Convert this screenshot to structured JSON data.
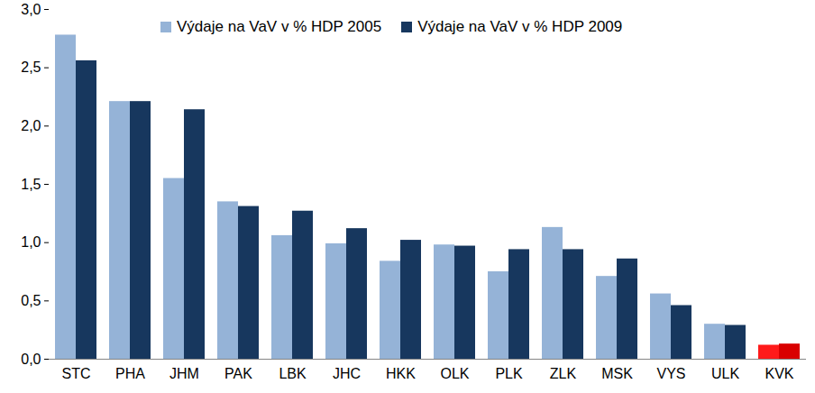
{
  "chart_data": {
    "type": "bar",
    "categories": [
      "STC",
      "PHA",
      "JHM",
      "PAK",
      "LBK",
      "JHC",
      "HKK",
      "OLK",
      "PLK",
      "ZLK",
      "MSK",
      "VYS",
      "ULK",
      "KVK"
    ],
    "series": [
      {
        "name": "Výdaje na VaV v % HDP 2005",
        "color": "#95b3d7",
        "colors": [
          "#95b3d7",
          "#95b3d7",
          "#95b3d7",
          "#95b3d7",
          "#95b3d7",
          "#95b3d7",
          "#95b3d7",
          "#95b3d7",
          "#95b3d7",
          "#95b3d7",
          "#95b3d7",
          "#95b3d7",
          "#95b3d7",
          "#ff1a1a"
        ],
        "values": [
          2.78,
          2.21,
          1.55,
          1.35,
          1.06,
          0.99,
          0.84,
          0.98,
          0.75,
          1.13,
          0.71,
          0.56,
          0.3,
          0.12
        ]
      },
      {
        "name": "Výdaje na VaV v % HDP 2009",
        "color": "#17375e",
        "colors": [
          "#17375e",
          "#17375e",
          "#17375e",
          "#17375e",
          "#17375e",
          "#17375e",
          "#17375e",
          "#17375e",
          "#17375e",
          "#17375e",
          "#17375e",
          "#17375e",
          "#17375e",
          "#d90000"
        ],
        "values": [
          2.56,
          2.21,
          2.14,
          1.31,
          1.27,
          1.12,
          1.02,
          0.97,
          0.94,
          0.94,
          0.86,
          0.46,
          0.29,
          0.13
        ]
      }
    ],
    "ylim": [
      0,
      3
    ],
    "yticks": [
      {
        "value": 0,
        "label": "0,0"
      },
      {
        "value": 0.5,
        "label": "0,5"
      },
      {
        "value": 1,
        "label": "1,0"
      },
      {
        "value": 1.5,
        "label": "1,5"
      },
      {
        "value": 2,
        "label": "2,0"
      },
      {
        "value": 2.5,
        "label": "2,5"
      },
      {
        "value": 3,
        "label": "3,0"
      }
    ],
    "grid": false,
    "legend": "top"
  }
}
